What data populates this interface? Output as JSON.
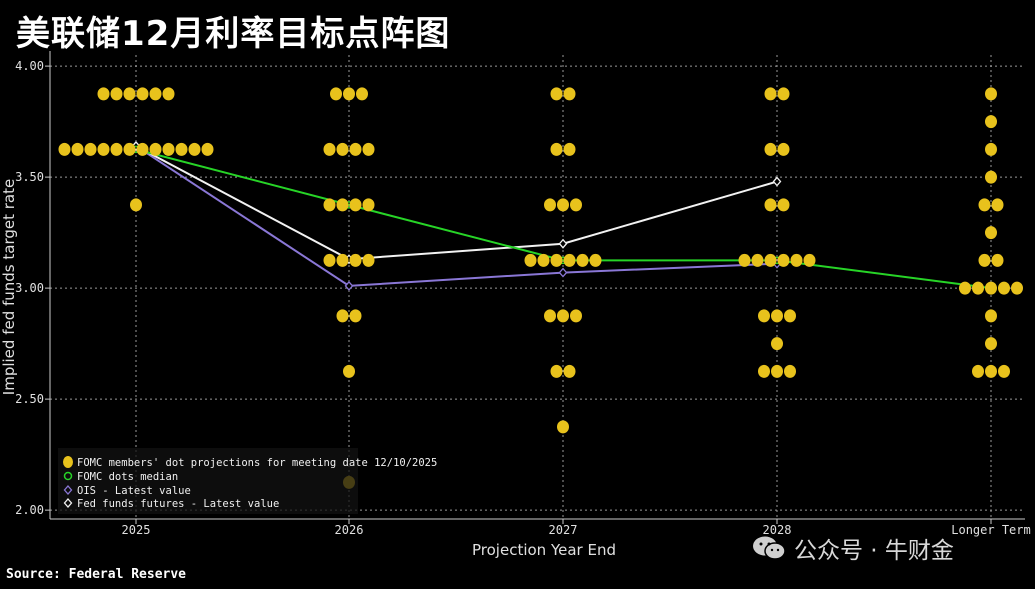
{
  "title": "美联储12月利率目标点阵图",
  "source": "Source: Federal Reserve",
  "watermark": "公众号 · 牛财金",
  "colors": {
    "background": "#000000",
    "dots": "#e8c21c",
    "median": "#27d427",
    "ois": "#8a77d6",
    "futures": "#f2f2f2",
    "grid": "#9a9a9a"
  },
  "chart_data": {
    "type": "scatter",
    "title": "",
    "xlabel": "Projection Year End",
    "ylabel": "Implied fed funds target rate",
    "categories": [
      "2025",
      "2026",
      "2027",
      "2028",
      "Longer Term"
    ],
    "ylim": [
      1.96,
      4.05
    ],
    "yticks": [
      "2.00",
      "2.50",
      "3.00",
      "3.50",
      "4.00"
    ],
    "grid": true,
    "legend_position": "bottom-left",
    "dots": [
      [
        {
          "rate": 3.875,
          "count": 6
        },
        {
          "rate": 3.625,
          "count": 12
        },
        {
          "rate": 3.375,
          "count": 1
        }
      ],
      [
        {
          "rate": 3.875,
          "count": 3
        },
        {
          "rate": 3.625,
          "count": 4
        },
        {
          "rate": 3.375,
          "count": 4
        },
        {
          "rate": 3.125,
          "count": 4
        },
        {
          "rate": 2.875,
          "count": 2
        },
        {
          "rate": 2.625,
          "count": 1
        },
        {
          "rate": 2.125,
          "count": 1
        }
      ],
      [
        {
          "rate": 3.875,
          "count": 2
        },
        {
          "rate": 3.625,
          "count": 2
        },
        {
          "rate": 3.375,
          "count": 3
        },
        {
          "rate": 3.125,
          "count": 6
        },
        {
          "rate": 2.875,
          "count": 3
        },
        {
          "rate": 2.625,
          "count": 2
        },
        {
          "rate": 2.375,
          "count": 1
        }
      ],
      [
        {
          "rate": 3.875,
          "count": 2
        },
        {
          "rate": 3.625,
          "count": 2
        },
        {
          "rate": 3.375,
          "count": 2
        },
        {
          "rate": 3.125,
          "count": 6
        },
        {
          "rate": 2.875,
          "count": 3
        },
        {
          "rate": 2.75,
          "count": 1
        },
        {
          "rate": 2.625,
          "count": 3
        }
      ],
      [
        {
          "rate": 3.875,
          "count": 1
        },
        {
          "rate": 3.75,
          "count": 1
        },
        {
          "rate": 3.625,
          "count": 1
        },
        {
          "rate": 3.5,
          "count": 1
        },
        {
          "rate": 3.375,
          "count": 2
        },
        {
          "rate": 3.25,
          "count": 1
        },
        {
          "rate": 3.125,
          "count": 2
        },
        {
          "rate": 3.0,
          "count": 5
        },
        {
          "rate": 2.875,
          "count": 1
        },
        {
          "rate": 2.75,
          "count": 1
        },
        {
          "rate": 2.625,
          "count": 3
        }
      ]
    ],
    "series": [
      {
        "name": "FOMC members' dot projections for meeting date 12/10/2025",
        "kind": "dots"
      },
      {
        "name": "FOMC dots median",
        "kind": "line",
        "values": [
          3.625,
          3.375,
          3.125,
          3.125,
          3.0
        ]
      },
      {
        "name": "OIS - Latest value",
        "kind": "line",
        "values": [
          3.64,
          3.01,
          3.07,
          3.11,
          null
        ]
      },
      {
        "name": "Fed funds futures - Latest value",
        "kind": "line",
        "values": [
          3.64,
          3.13,
          3.2,
          3.48,
          null
        ]
      }
    ]
  }
}
